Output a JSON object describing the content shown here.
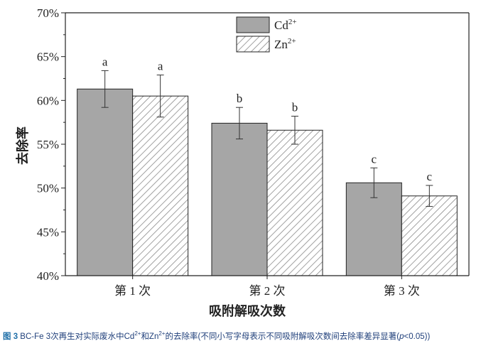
{
  "chart_data": {
    "type": "bar",
    "categories": [
      "第 1 次",
      "第 2 次",
      "第 3 次"
    ],
    "series": [
      {
        "name_base": "Cd",
        "name_sup": "2+",
        "pattern": "solid",
        "values": [
          61.3,
          57.4,
          50.6
        ],
        "errors": [
          2.1,
          1.8,
          1.7
        ],
        "labels": [
          "a",
          "b",
          "c"
        ]
      },
      {
        "name_base": "Zn",
        "name_sup": "2+",
        "pattern": "hatched",
        "values": [
          60.5,
          56.6,
          49.1
        ],
        "errors": [
          2.4,
          1.6,
          1.2
        ],
        "labels": [
          "a",
          "b",
          "c"
        ]
      }
    ],
    "xlabel": "吸附解吸次数",
    "ylabel": "去除率",
    "ylim": [
      40,
      70
    ],
    "yticks": [
      "40%",
      "45%",
      "50%",
      "55%",
      "60%",
      "65%",
      "70%"
    ],
    "legend_position": "top-right",
    "grid": false
  },
  "caption": {
    "fig_label": "图 3",
    "text_1": " BC-Fe 3次再生对实际废水中Cd",
    "sup_1": "2+",
    "text_2": "和Zn",
    "sup_2": "2+",
    "text_3": "的去除率(不同小写字母表示不同吸附解吸次数间去除率差异显著(",
    "p_symbol": "p",
    "text_4": "<0.05))"
  },
  "colors": {
    "bar_solid": "#a6a6a6",
    "hatch": "#8a8a8a",
    "caption": "#1f3f7a"
  }
}
